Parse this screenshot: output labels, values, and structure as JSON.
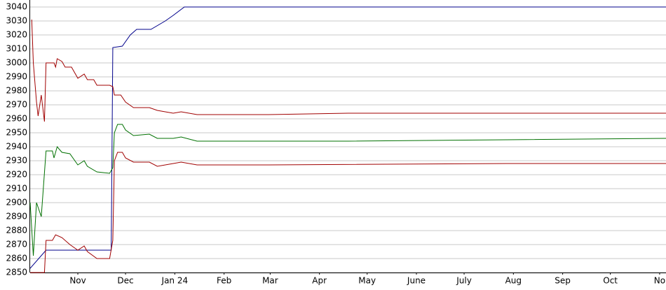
{
  "chart_data": {
    "type": "line",
    "xlim": [
      0,
      400
    ],
    "xticks": [
      {
        "value": 30,
        "label": "Nov"
      },
      {
        "value": 60,
        "label": "Dec"
      },
      {
        "value": 91,
        "label": "Jan 24"
      },
      {
        "value": 122,
        "label": "Feb"
      },
      {
        "value": 151,
        "label": "Mar"
      },
      {
        "value": 182,
        "label": "Apr"
      },
      {
        "value": 212,
        "label": "May"
      },
      {
        "value": 243,
        "label": "June"
      },
      {
        "value": 273,
        "label": "July"
      },
      {
        "value": 304,
        "label": "Aug"
      },
      {
        "value": 335,
        "label": "Sep"
      },
      {
        "value": 365,
        "label": "Oct"
      },
      {
        "value": 396,
        "label": "No"
      }
    ],
    "ylim": [
      2850,
      3040
    ],
    "yticks": [
      2850,
      2860,
      2870,
      2880,
      2890,
      2900,
      2910,
      2920,
      2930,
      2940,
      2950,
      2960,
      2970,
      2980,
      2990,
      3000,
      3010,
      3020,
      3030,
      3040
    ],
    "grid": true,
    "series": [
      {
        "color": "#00008b",
        "x": [
          0,
          10,
          51,
          52,
          58,
          63,
          67,
          76,
          85,
          90,
          97,
          400
        ],
        "values": [
          2853,
          2866,
          2866,
          3011,
          3012,
          3020,
          3024,
          3024,
          3030,
          3034,
          3040,
          3040
        ]
      },
      {
        "color": "#a00000",
        "x": [
          1,
          2,
          4,
          5,
          7,
          9,
          10,
          15,
          16,
          17,
          20,
          22,
          26,
          30,
          34,
          36,
          40,
          42,
          50,
          52,
          53,
          57,
          60,
          65,
          75,
          80,
          90,
          95,
          105,
          150,
          200,
          300,
          400
        ],
        "values": [
          3031,
          3000,
          2972,
          2962,
          2977,
          2958,
          3000,
          3000,
          2997,
          3003,
          3001,
          2997,
          2997,
          2989,
          2992,
          2988,
          2988,
          2984,
          2984,
          2983,
          2977,
          2977,
          2972,
          2968,
          2968,
          2966,
          2964,
          2965,
          2963,
          2963,
          2964,
          2964,
          2964
        ]
      },
      {
        "color": "#007000",
        "x": [
          0,
          2,
          4,
          7,
          10,
          14,
          15,
          17,
          20,
          25,
          30,
          34,
          36,
          42,
          50,
          52,
          53,
          55,
          58,
          60,
          65,
          75,
          80,
          90,
          95,
          105,
          200,
          300,
          400
        ],
        "values": [
          2900,
          2862,
          2900,
          2890,
          2937,
          2937,
          2932,
          2940,
          2936,
          2935,
          2927,
          2930,
          2926,
          2922,
          2921,
          2925,
          2950,
          2956,
          2956,
          2952,
          2948,
          2949,
          2946,
          2946,
          2947,
          2944,
          2944,
          2945,
          2946
        ]
      },
      {
        "color": "#a00000",
        "x": [
          0,
          9,
          10,
          14,
          16,
          20,
          25,
          30,
          34,
          36,
          42,
          50,
          52,
          53,
          55,
          58,
          60,
          65,
          75,
          80,
          90,
          95,
          105,
          150,
          300,
          400
        ],
        "values": [
          2850,
          2850,
          2873,
          2873,
          2877,
          2875,
          2870,
          2866,
          2869,
          2865,
          2860,
          2860,
          2873,
          2930,
          2936,
          2936,
          2932,
          2929,
          2929,
          2926,
          2928,
          2929,
          2927,
          2927,
          2928,
          2928
        ]
      }
    ]
  }
}
